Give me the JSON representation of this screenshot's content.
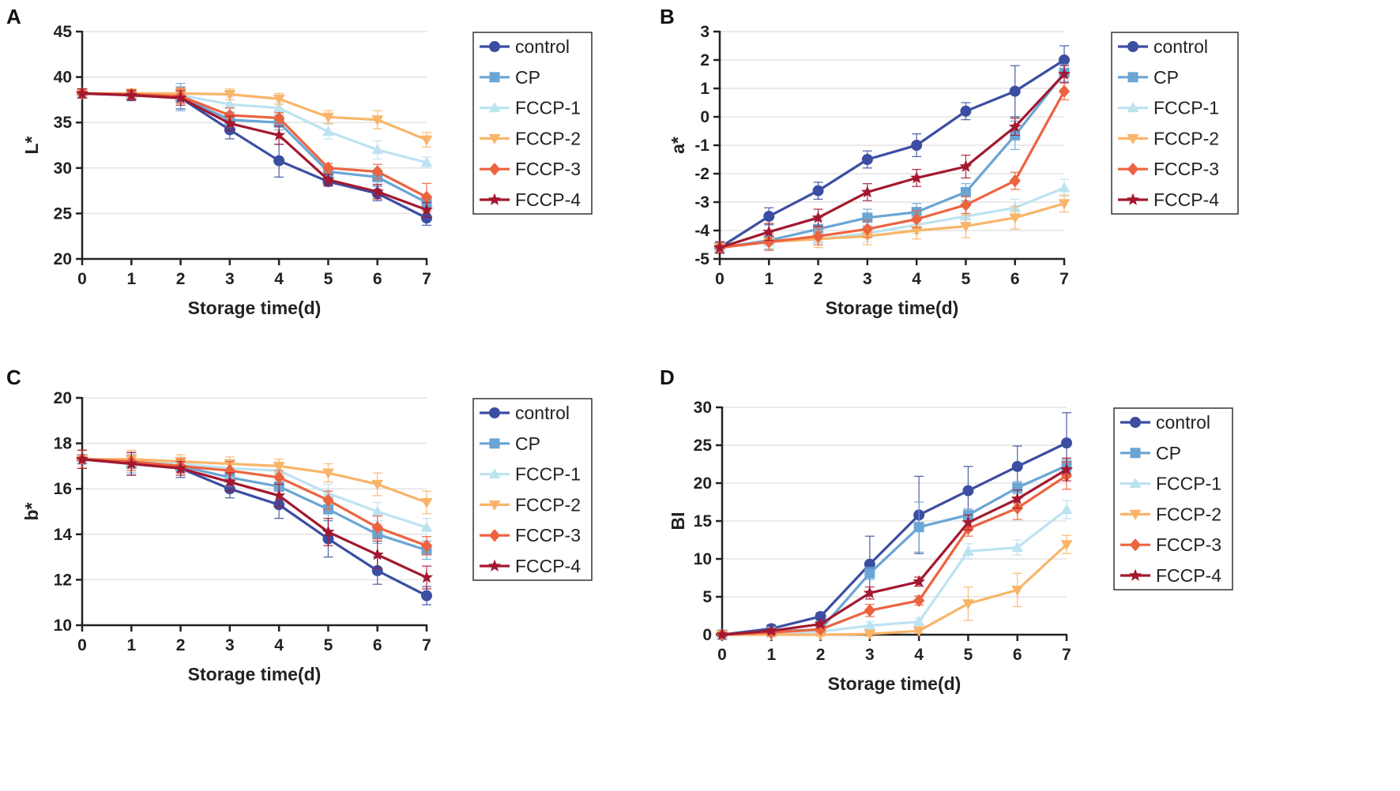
{
  "colors": {
    "control": "#3b4ea2",
    "CP": "#6aa5d4",
    "FCCP-1": "#bde3f1",
    "FCCP-2": "#f8b56a",
    "FCCP-3": "#ec6340",
    "FCCP-4": "#a3182f",
    "grid": "#e3e3e3",
    "axis": "#222222"
  },
  "chart_data": [
    {
      "type": "line",
      "panel": "A",
      "xlabel": "Storage time(d)",
      "ylabel": "L*",
      "x": [
        0,
        1,
        2,
        3,
        4,
        5,
        6,
        7
      ],
      "ylim": [
        20,
        45
      ],
      "yticks": [
        20,
        25,
        30,
        35,
        40,
        45
      ],
      "legend_position": "right",
      "series": [
        {
          "name": "control",
          "marker": "circle",
          "values": [
            38.2,
            38.0,
            37.7,
            34.2,
            30.8,
            28.5,
            27.2,
            24.5
          ],
          "errors": [
            0.5,
            0.6,
            1.2,
            1.0,
            1.8,
            0.5,
            0.8,
            0.8
          ]
        },
        {
          "name": "CP",
          "marker": "square",
          "values": [
            38.2,
            38.1,
            37.8,
            35.3,
            35.0,
            29.6,
            29.0,
            26.2
          ],
          "errors": [
            0.5,
            0.5,
            1.5,
            0.8,
            0.8,
            0.5,
            0.8,
            0.7
          ]
        },
        {
          "name": "FCCP-1",
          "marker": "triangle-up",
          "values": [
            38.2,
            38.1,
            38.0,
            37.0,
            36.6,
            34.0,
            32.0,
            30.6
          ],
          "errors": [
            0.5,
            0.5,
            0.8,
            0.8,
            0.6,
            0.8,
            1.0,
            0.6
          ]
        },
        {
          "name": "FCCP-2",
          "marker": "triangle-down",
          "values": [
            38.2,
            38.2,
            38.2,
            38.1,
            37.6,
            35.6,
            35.3,
            33.1
          ],
          "errors": [
            0.5,
            0.5,
            0.6,
            0.6,
            0.6,
            0.7,
            1.0,
            0.8
          ]
        },
        {
          "name": "FCCP-3",
          "marker": "diamond",
          "values": [
            38.2,
            38.1,
            37.9,
            35.8,
            35.5,
            30.0,
            29.6,
            26.8
          ],
          "errors": [
            0.5,
            0.5,
            0.8,
            0.8,
            0.6,
            0.5,
            0.8,
            1.5
          ]
        },
        {
          "name": "FCCP-4",
          "marker": "star",
          "values": [
            38.2,
            38.0,
            37.7,
            34.9,
            33.6,
            28.7,
            27.4,
            25.4
          ],
          "errors": [
            0.5,
            0.5,
            0.8,
            0.8,
            1.0,
            0.6,
            0.8,
            0.8
          ]
        }
      ]
    },
    {
      "type": "line",
      "panel": "B",
      "xlabel": "Storage time(d)",
      "ylabel": "a*",
      "x": [
        0,
        1,
        2,
        3,
        4,
        5,
        6,
        7
      ],
      "ylim": [
        -5,
        3
      ],
      "yticks": [
        -5,
        -4,
        -3,
        -2,
        -1,
        0,
        1,
        2,
        3
      ],
      "legend_position": "right",
      "series": [
        {
          "name": "control",
          "marker": "circle",
          "values": [
            -4.6,
            -3.5,
            -2.6,
            -1.5,
            -1.0,
            0.2,
            0.9,
            2.0
          ],
          "errors": [
            0.2,
            0.3,
            0.3,
            0.3,
            0.4,
            0.3,
            0.9,
            0.5
          ]
        },
        {
          "name": "CP",
          "marker": "square",
          "values": [
            -4.6,
            -4.35,
            -3.95,
            -3.55,
            -3.35,
            -2.65,
            -0.65,
            1.55
          ],
          "errors": [
            0.2,
            0.3,
            0.3,
            0.3,
            0.3,
            0.3,
            0.5,
            0.3
          ]
        },
        {
          "name": "FCCP-1",
          "marker": "triangle-up",
          "values": [
            -4.6,
            -4.4,
            -4.3,
            -4.1,
            -3.8,
            -3.5,
            -3.2,
            -2.5
          ],
          "errors": [
            0.2,
            0.3,
            0.2,
            0.3,
            0.3,
            0.3,
            0.3,
            0.3
          ]
        },
        {
          "name": "FCCP-2",
          "marker": "triangle-down",
          "values": [
            -4.6,
            -4.4,
            -4.3,
            -4.2,
            -4.0,
            -3.85,
            -3.55,
            -3.05
          ],
          "errors": [
            0.2,
            0.3,
            0.3,
            0.3,
            0.3,
            0.4,
            0.4,
            0.3
          ]
        },
        {
          "name": "FCCP-3",
          "marker": "diamond",
          "values": [
            -4.6,
            -4.4,
            -4.2,
            -3.95,
            -3.6,
            -3.1,
            -2.25,
            0.9
          ],
          "errors": [
            0.2,
            0.3,
            0.3,
            0.3,
            0.3,
            0.3,
            0.3,
            0.3
          ]
        },
        {
          "name": "FCCP-4",
          "marker": "star",
          "values": [
            -4.6,
            -4.05,
            -3.55,
            -2.65,
            -2.15,
            -1.75,
            -0.35,
            1.5
          ],
          "errors": [
            0.2,
            0.3,
            0.3,
            0.3,
            0.3,
            0.4,
            0.3,
            0.3
          ]
        }
      ]
    },
    {
      "type": "line",
      "panel": "C",
      "xlabel": "Storage time(d)",
      "ylabel": "b*",
      "x": [
        0,
        1,
        2,
        3,
        4,
        5,
        6,
        7
      ],
      "ylim": [
        10,
        20
      ],
      "yticks": [
        10,
        12,
        14,
        16,
        18,
        20
      ],
      "legend_position": "right",
      "series": [
        {
          "name": "control",
          "marker": "circle",
          "values": [
            17.3,
            17.1,
            16.9,
            16.0,
            15.3,
            13.8,
            12.4,
            11.3
          ],
          "errors": [
            0.4,
            0.5,
            0.4,
            0.4,
            0.6,
            0.8,
            0.6,
            0.4
          ]
        },
        {
          "name": "CP",
          "marker": "square",
          "values": [
            17.3,
            17.1,
            17.0,
            16.5,
            16.1,
            15.1,
            14.0,
            13.3
          ],
          "errors": [
            0.4,
            0.4,
            0.3,
            0.4,
            0.4,
            0.5,
            0.4,
            0.4
          ]
        },
        {
          "name": "FCCP-1",
          "marker": "triangle-up",
          "values": [
            17.3,
            17.2,
            17.1,
            16.9,
            16.8,
            15.8,
            15.0,
            14.3
          ],
          "errors": [
            0.4,
            0.4,
            0.3,
            0.4,
            0.3,
            0.4,
            0.4,
            0.4
          ]
        },
        {
          "name": "FCCP-2",
          "marker": "triangle-down",
          "values": [
            17.3,
            17.3,
            17.2,
            17.1,
            17.0,
            16.7,
            16.2,
            15.4
          ],
          "errors": [
            0.4,
            0.4,
            0.3,
            0.3,
            0.3,
            0.4,
            0.5,
            0.5
          ]
        },
        {
          "name": "FCCP-3",
          "marker": "diamond",
          "values": [
            17.3,
            17.2,
            17.0,
            16.8,
            16.5,
            15.5,
            14.3,
            13.5
          ],
          "errors": [
            0.4,
            0.4,
            0.3,
            0.4,
            0.3,
            0.4,
            0.5,
            0.4
          ]
        },
        {
          "name": "FCCP-4",
          "marker": "star",
          "values": [
            17.3,
            17.1,
            16.9,
            16.3,
            15.7,
            14.1,
            13.1,
            12.1
          ],
          "errors": [
            0.4,
            0.5,
            0.3,
            0.4,
            0.5,
            0.6,
            0.6,
            0.5
          ]
        }
      ]
    },
    {
      "type": "line",
      "panel": "D",
      "xlabel": "Storage time(d)",
      "ylabel": "BI",
      "x": [
        0,
        1,
        2,
        3,
        4,
        5,
        6,
        7
      ],
      "ylim": [
        0,
        30
      ],
      "yticks": [
        0,
        5,
        10,
        15,
        20,
        25,
        30
      ],
      "legend_position": "right",
      "series": [
        {
          "name": "control",
          "marker": "circle",
          "values": [
            0.0,
            0.8,
            2.4,
            9.3,
            15.8,
            19.0,
            22.2,
            25.3
          ],
          "errors": [
            0.2,
            0.5,
            0.5,
            3.7,
            5.1,
            3.2,
            2.7,
            4.0
          ]
        },
        {
          "name": "CP",
          "marker": "square",
          "values": [
            0.0,
            0.4,
            0.7,
            8.1,
            14.2,
            15.8,
            19.4,
            22.3
          ],
          "errors": [
            0.2,
            0.3,
            0.3,
            0.8,
            3.3,
            0.8,
            0.8,
            0.8
          ]
        },
        {
          "name": "FCCP-1",
          "marker": "triangle-up",
          "values": [
            0.0,
            0.2,
            0.4,
            1.2,
            1.7,
            11.0,
            11.5,
            16.5
          ],
          "errors": [
            0.2,
            0.2,
            0.3,
            0.5,
            0.5,
            1.0,
            1.0,
            1.2
          ]
        },
        {
          "name": "FCCP-2",
          "marker": "triangle-down",
          "values": [
            0.0,
            0.0,
            0.0,
            0.1,
            0.5,
            4.1,
            5.9,
            11.9
          ],
          "errors": [
            0.2,
            0.2,
            0.2,
            0.3,
            0.3,
            2.2,
            2.2,
            1.2
          ]
        },
        {
          "name": "FCCP-3",
          "marker": "diamond",
          "values": [
            0.0,
            0.3,
            0.7,
            3.2,
            4.5,
            14.0,
            16.7,
            21.0
          ],
          "errors": [
            0.2,
            0.3,
            0.3,
            0.8,
            0.6,
            1.0,
            1.5,
            1.8
          ]
        },
        {
          "name": "FCCP-4",
          "marker": "star",
          "values": [
            0.0,
            0.5,
            1.4,
            5.5,
            7.0,
            14.8,
            17.9,
            21.8
          ],
          "errors": [
            0.2,
            0.3,
            0.3,
            0.8,
            0.6,
            1.0,
            1.2,
            1.5
          ]
        }
      ]
    }
  ]
}
